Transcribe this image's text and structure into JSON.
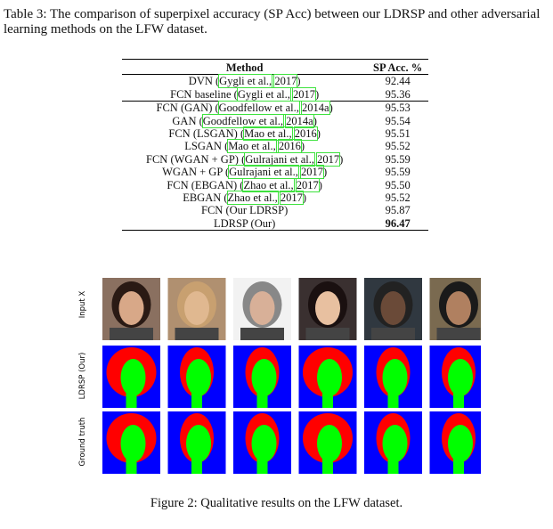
{
  "table_caption": "Table 3: The comparison of superpixel accuracy (SP Acc) between our LDRSP and other adversarial learning methods on the LFW dataset.",
  "table": {
    "header": [
      "Method",
      "SP Acc. %"
    ],
    "rows": [
      {
        "method": {
          "prefix": "DVN (",
          "links": [
            "Gygli et al.,",
            "2017"
          ],
          "suffix": ")"
        },
        "acc": "92.44"
      },
      {
        "method": {
          "prefix": "FCN baseline (",
          "links": [
            "Gygli et al.,",
            "2017"
          ],
          "suffix": ")"
        },
        "acc": "95.36"
      },
      {
        "method": {
          "prefix": "FCN (GAN) (",
          "links": [
            "Goodfellow et al.,",
            "2014a"
          ],
          "suffix": ")"
        },
        "acc": "95.53"
      },
      {
        "method": {
          "prefix": "GAN (",
          "links": [
            "Goodfellow et al.,",
            "2014a"
          ],
          "suffix": ")"
        },
        "acc": "95.54"
      },
      {
        "method": {
          "prefix": "FCN (LSGAN) (",
          "links": [
            "Mao et al.,",
            "2016"
          ],
          "suffix": ")"
        },
        "acc": "95.51"
      },
      {
        "method": {
          "prefix": "LSGAN (",
          "links": [
            "Mao et al.,",
            "2016"
          ],
          "suffix": ")"
        },
        "acc": "95.52"
      },
      {
        "method": {
          "prefix": "FCN (WGAN + GP) (",
          "links": [
            "Gulrajani et al.,",
            "2017"
          ],
          "suffix": ")"
        },
        "acc": "95.59"
      },
      {
        "method": {
          "prefix": "WGAN + GP (",
          "links": [
            "Gulrajani et al.,",
            "2017"
          ],
          "suffix": ")"
        },
        "acc": "95.59"
      },
      {
        "method": {
          "prefix": "FCN (EBGAN) (",
          "links": [
            "Zhao et al.,",
            "2017"
          ],
          "suffix": ")"
        },
        "acc": "95.50"
      },
      {
        "method": {
          "prefix": "EBGAN (",
          "links": [
            "Zhao et al.,",
            "2017"
          ],
          "suffix": ")"
        },
        "acc": "95.52"
      },
      {
        "method": "FCN (Our LDRSP)",
        "acc": "95.87"
      },
      {
        "method": "LDRSP (Our)",
        "acc": "96.47"
      }
    ]
  },
  "figure": {
    "row_labels": [
      "Input X",
      "LDRSP (Our)",
      "Ground truth"
    ],
    "caption": "Figure 2: Qualitative results on the LFW dataset."
  }
}
